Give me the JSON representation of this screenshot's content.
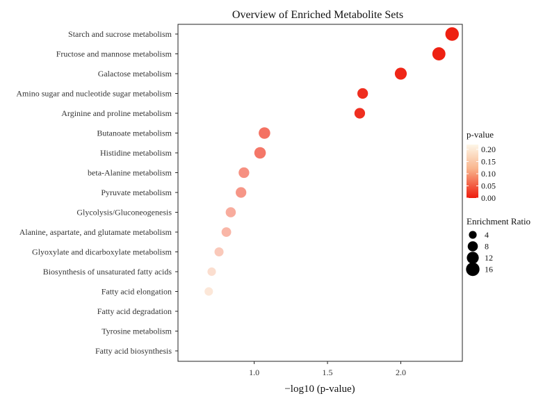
{
  "chart_data": {
    "type": "scatter",
    "title": "Overview of Enriched Metabolite Sets",
    "xlabel": "−log10 (p-value)",
    "ylabel": "",
    "xlim": [
      0.48,
      2.42
    ],
    "xticks": [
      1.0,
      1.5,
      2.0
    ],
    "xtick_labels": [
      "1.0",
      "1.5",
      "2.0"
    ],
    "grid": false,
    "categories": [
      "Starch and sucrose metabolism",
      "Fructose and mannose metabolism",
      "Galactose metabolism",
      "Amino sugar and nucleotide sugar metabolism",
      "Arginine and proline metabolism",
      "Butanoate metabolism",
      "Histidine metabolism",
      "beta-Alanine metabolism",
      "Pyruvate metabolism",
      "Glycolysis/Gluconeogenesis",
      "Alanine, aspartate, and glutamate metabolism",
      "Glyoxylate and dicarboxylate metabolism",
      "Biosynthesis of unsaturated fatty acids",
      "Fatty acid elongation",
      "Fatty acid degradation",
      "Tyrosine metabolism",
      "Fatty acid biosynthesis"
    ],
    "neg_log10_p": [
      2.35,
      2.26,
      2.0,
      1.74,
      1.72,
      1.07,
      1.04,
      0.93,
      0.91,
      0.84,
      0.81,
      0.76,
      0.71,
      0.69,
      null,
      null,
      null
    ],
    "p_value": [
      0.0045,
      0.0055,
      0.01,
      0.018,
      0.019,
      0.085,
      0.091,
      0.117,
      0.123,
      0.145,
      0.155,
      0.174,
      0.195,
      0.204,
      null,
      null,
      null
    ],
    "enrichment_ratio": [
      16,
      15,
      12,
      9,
      9,
      11,
      11,
      9,
      9,
      8,
      7,
      6,
      5,
      5,
      null,
      null,
      null
    ],
    "legend_color": {
      "title": "p-value",
      "ticks": [
        "0.20",
        "0.15",
        "0.10",
        "0.05",
        "0.00"
      ],
      "tick_values": [
        0.2,
        0.15,
        0.1,
        0.05,
        0.0
      ],
      "range": [
        0.0,
        0.22
      ],
      "low_color": "#ee1c0d",
      "high_color": "#fdf7e8",
      "position": "right"
    },
    "legend_size": {
      "title": "Enrichment Ratio",
      "values": [
        4,
        8,
        12,
        16
      ],
      "labels": [
        "4",
        "8",
        "12",
        "16"
      ],
      "position": "right"
    }
  }
}
